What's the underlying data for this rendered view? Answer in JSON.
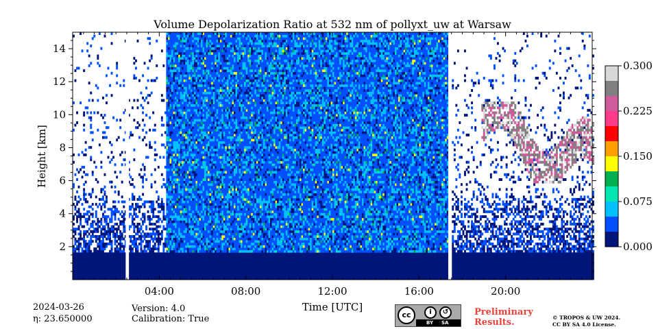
{
  "chart_data": {
    "type": "heatmap",
    "title": "Volume Depolarization Ratio at 532 nm of pollyxt_uw at Warsaw",
    "xlabel": "Time [UTC]",
    "ylabel": "Height [km]",
    "x_range_hours": [
      0,
      24
    ],
    "ylim": [
      0,
      15
    ],
    "x_ticks": [
      "04:00",
      "08:00",
      "12:00",
      "16:00",
      "20:00"
    ],
    "x_tick_hours": [
      4,
      8,
      12,
      16,
      20
    ],
    "y_ticks": [
      2,
      4,
      6,
      8,
      10,
      12,
      14
    ],
    "colorbar": {
      "range": [
        0.0,
        0.3
      ],
      "ticks": [
        "0.000",
        "0.075",
        "0.150",
        "0.225",
        "0.300"
      ],
      "tick_values": [
        0.0,
        0.075,
        0.15,
        0.225,
        0.3
      ],
      "colors": [
        "#00157a",
        "#0050ff",
        "#00c0ff",
        "#00e6b0",
        "#00b050",
        "#ffff00",
        "#ffa000",
        "#ff0000",
        "#ff3c8c",
        "#d05a9a",
        "#808080",
        "#d8d8d8"
      ]
    },
    "no_data_periods_hours": [
      [
        2.45,
        2.6
      ],
      [
        17.35,
        17.5
      ]
    ],
    "features": [
      {
        "name": "boundary layer",
        "hours": [
          0,
          24
        ],
        "top_km": 1.5,
        "value": 0.01
      },
      {
        "name": "daytime noise",
        "hours": [
          4.3,
          17.3
        ],
        "top_km": 15,
        "value": 0.06
      },
      {
        "name": "cirrus cloud",
        "hours": [
          18.8,
          24
        ],
        "height_km": [
          5.8,
          10.8
        ],
        "value": 0.26
      }
    ]
  },
  "info": {
    "date": "2024-03-26",
    "eta_line": "η: 23.650000",
    "version": "Version: 4.0",
    "calibration": "Calibration: True",
    "preliminary_line1": "Preliminary",
    "preliminary_line2": "Results.",
    "copyright_line1": "© TROPOS & UW 2024.",
    "copyright_line2": "CC BY SA 4.0 License."
  },
  "badge": {
    "cc": "cc",
    "by": "BY",
    "sa": "SA"
  }
}
